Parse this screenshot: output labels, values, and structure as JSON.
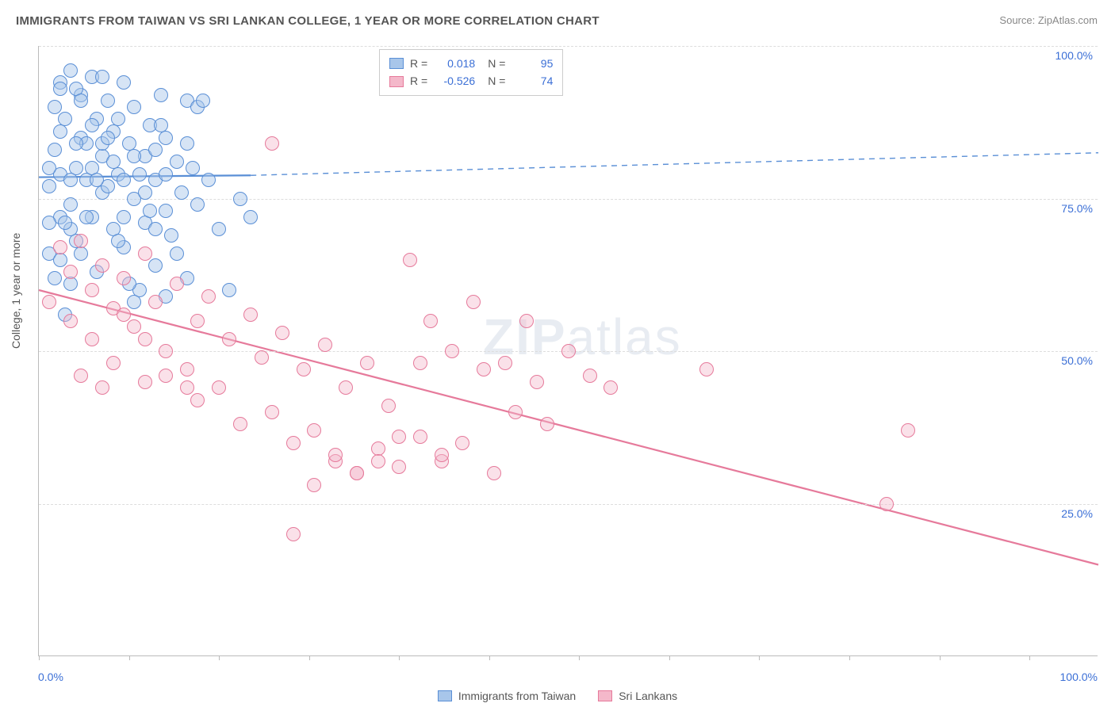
{
  "title": "IMMIGRANTS FROM TAIWAN VS SRI LANKAN COLLEGE, 1 YEAR OR MORE CORRELATION CHART",
  "source_label": "Source:",
  "source_name": "ZipAtlas.com",
  "ylabel": "College, 1 year or more",
  "watermark_a": "ZIP",
  "watermark_b": "atlas",
  "chart": {
    "type": "scatter",
    "background_color": "#ffffff",
    "grid_color": "#dddddd",
    "axis_color": "#bbbbbb",
    "xlim": [
      0,
      100
    ],
    "ylim": [
      0,
      100
    ],
    "y_ticks": [
      25,
      50,
      75,
      100
    ],
    "y_tick_labels": [
      "25.0%",
      "50.0%",
      "75.0%",
      "100.0%"
    ],
    "x_tick_positions": [
      0,
      8.5,
      17,
      25.5,
      34,
      42.5,
      51,
      59.5,
      68,
      76.5,
      85,
      93.5
    ],
    "x_axis_labels": {
      "left": "0.0%",
      "right": "100.0%"
    },
    "marker_radius": 9,
    "marker_border_width": 1.4,
    "marker_fill_opacity": 0.22,
    "series": [
      {
        "id": "taiwan",
        "label": "Immigrants from Taiwan",
        "color_border": "#5a8fd6",
        "color_fill": "#a8c6ea",
        "R": "0.018",
        "N": "95",
        "trend": {
          "solid": {
            "x1": 0,
            "y1": 78.5,
            "x2": 20,
            "y2": 78.8
          },
          "dashed": {
            "x1": 20,
            "y1": 78.8,
            "x2": 100,
            "y2": 82.5
          },
          "width_solid": 2.2,
          "width_dashed": 1.4
        },
        "points": [
          [
            1,
            77
          ],
          [
            1.5,
            83
          ],
          [
            2,
            94
          ],
          [
            2,
            72
          ],
          [
            2.5,
            88
          ],
          [
            3,
            96
          ],
          [
            3,
            74
          ],
          [
            3.5,
            80
          ],
          [
            3.5,
            68
          ],
          [
            4,
            92
          ],
          [
            4,
            85
          ],
          [
            4.5,
            78
          ],
          [
            5,
            95
          ],
          [
            5,
            72
          ],
          [
            5.5,
            88
          ],
          [
            5.5,
            63
          ],
          [
            6,
            82
          ],
          [
            6,
            76
          ],
          [
            6.5,
            91
          ],
          [
            7,
            70
          ],
          [
            7,
            86
          ],
          [
            7.5,
            79
          ],
          [
            8,
            94
          ],
          [
            8,
            67
          ],
          [
            8.5,
            84
          ],
          [
            9,
            75
          ],
          [
            9,
            90
          ],
          [
            9.5,
            60
          ],
          [
            10,
            82
          ],
          [
            10,
            71
          ],
          [
            10.5,
            87
          ],
          [
            11,
            64
          ],
          [
            11,
            78
          ],
          [
            11.5,
            92
          ],
          [
            12,
            73
          ],
          [
            12,
            85
          ],
          [
            12.5,
            69
          ],
          [
            13,
            81
          ],
          [
            13.5,
            76
          ],
          [
            14,
            91
          ],
          [
            14,
            62
          ],
          [
            14.5,
            80
          ],
          [
            15,
            74
          ],
          [
            1.5,
            90
          ],
          [
            2,
            79
          ],
          [
            3,
            70
          ],
          [
            4,
            66
          ],
          [
            6,
            95
          ],
          [
            2.5,
            56
          ],
          [
            3,
            61
          ],
          [
            4.5,
            84
          ],
          [
            7.5,
            68
          ],
          [
            8,
            72
          ],
          [
            2,
            86
          ],
          [
            5,
            80
          ],
          [
            9,
            58
          ],
          [
            11,
            70
          ],
          [
            3.5,
            93
          ],
          [
            6.5,
            77
          ],
          [
            12,
            59
          ],
          [
            15,
            90
          ],
          [
            15.5,
            91
          ],
          [
            16,
            78
          ],
          [
            17,
            70
          ],
          [
            18,
            60
          ],
          [
            19,
            75
          ],
          [
            20,
            72
          ],
          [
            1,
            66
          ],
          [
            1,
            71
          ],
          [
            2,
            65
          ],
          [
            3,
            78
          ],
          [
            4,
            91
          ],
          [
            5,
            87
          ],
          [
            6,
            84
          ],
          [
            7,
            81
          ],
          [
            8,
            78
          ],
          [
            9,
            82
          ],
          [
            10,
            76
          ],
          [
            11,
            83
          ],
          [
            12,
            79
          ],
          [
            1.5,
            62
          ],
          [
            2.5,
            71
          ],
          [
            3.5,
            84
          ],
          [
            4.5,
            72
          ],
          [
            5.5,
            78
          ],
          [
            6.5,
            85
          ],
          [
            7.5,
            88
          ],
          [
            8.5,
            61
          ],
          [
            9.5,
            79
          ],
          [
            10.5,
            73
          ],
          [
            11.5,
            87
          ],
          [
            13,
            66
          ],
          [
            14,
            84
          ],
          [
            1,
            80
          ],
          [
            2,
            93
          ]
        ]
      },
      {
        "id": "srilankan",
        "label": "Sri Lankans",
        "color_border": "#e67a9b",
        "color_fill": "#f4b8ca",
        "R": "-0.526",
        "N": "74",
        "trend": {
          "solid": {
            "x1": 0,
            "y1": 60,
            "x2": 100,
            "y2": 15
          },
          "dashed": null,
          "width_solid": 2.2
        },
        "points": [
          [
            1,
            58
          ],
          [
            2,
            67
          ],
          [
            3,
            63
          ],
          [
            3,
            55
          ],
          [
            4,
            68
          ],
          [
            5,
            60
          ],
          [
            5,
            52
          ],
          [
            6,
            64
          ],
          [
            7,
            57
          ],
          [
            7,
            48
          ],
          [
            8,
            62
          ],
          [
            9,
            54
          ],
          [
            10,
            66
          ],
          [
            10,
            45
          ],
          [
            11,
            58
          ],
          [
            12,
            50
          ],
          [
            13,
            61
          ],
          [
            14,
            47
          ],
          [
            15,
            55
          ],
          [
            15,
            42
          ],
          [
            16,
            59
          ],
          [
            17,
            44
          ],
          [
            18,
            52
          ],
          [
            19,
            38
          ],
          [
            20,
            56
          ],
          [
            22,
            84
          ],
          [
            21,
            49
          ],
          [
            22,
            40
          ],
          [
            23,
            53
          ],
          [
            24,
            35
          ],
          [
            25,
            47
          ],
          [
            26,
            37
          ],
          [
            27,
            51
          ],
          [
            28,
            32
          ],
          [
            29,
            44
          ],
          [
            30,
            30
          ],
          [
            31,
            48
          ],
          [
            32,
            34
          ],
          [
            33,
            41
          ],
          [
            34,
            36
          ],
          [
            35,
            65
          ],
          [
            36,
            48
          ],
          [
            37,
            55
          ],
          [
            38,
            32
          ],
          [
            39,
            50
          ],
          [
            40,
            35
          ],
          [
            41,
            58
          ],
          [
            42,
            47
          ],
          [
            43,
            30
          ],
          [
            44,
            48
          ],
          [
            45,
            40
          ],
          [
            46,
            55
          ],
          [
            47,
            45
          ],
          [
            48,
            38
          ],
          [
            50,
            50
          ],
          [
            52,
            46
          ],
          [
            54,
            44
          ],
          [
            24,
            20
          ],
          [
            26,
            28
          ],
          [
            28,
            33
          ],
          [
            30,
            30
          ],
          [
            32,
            32
          ],
          [
            34,
            31
          ],
          [
            36,
            36
          ],
          [
            38,
            33
          ],
          [
            63,
            47
          ],
          [
            80,
            25
          ],
          [
            82,
            37
          ],
          [
            4,
            46
          ],
          [
            6,
            44
          ],
          [
            8,
            56
          ],
          [
            10,
            52
          ],
          [
            12,
            46
          ],
          [
            14,
            44
          ]
        ]
      }
    ]
  },
  "legend_top": {
    "r_label": "R  =",
    "n_label": "N  ="
  }
}
